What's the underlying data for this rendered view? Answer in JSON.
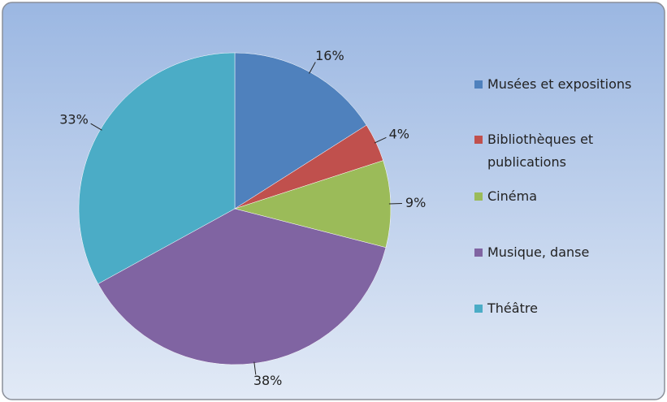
{
  "chart_data": {
    "type": "pie",
    "categories": [
      "Musées et expositions",
      "Bibliothèques et publications",
      "Cinéma",
      "Musique, danse",
      "Théâtre"
    ],
    "values": [
      16,
      4,
      9,
      38,
      33
    ],
    "value_labels": [
      "16%",
      "4%",
      "9%",
      "38%",
      "33%"
    ],
    "colors": [
      "#4f81bd",
      "#c0504d",
      "#9bbb59",
      "#8064a2",
      "#4bacc6"
    ],
    "legend": "right"
  }
}
